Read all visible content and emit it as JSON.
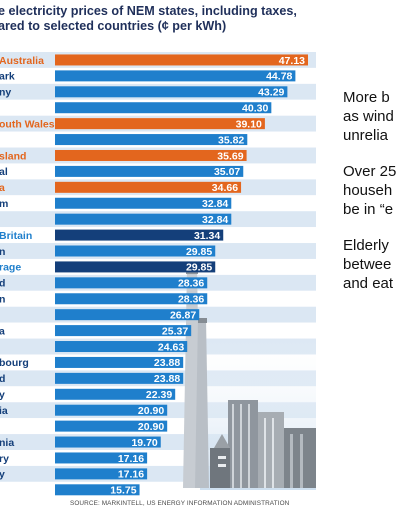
{
  "colors": {
    "highlight": "#e3661e",
    "standard": "#1f7fcc",
    "dark": "#143f7a",
    "stripe_light": "#dbe7f3",
    "stripe_white": "#ffffff",
    "title": "#1f2f5a"
  },
  "chart_data": {
    "type": "bar",
    "orientation": "horizontal",
    "title": "e electricity prices of NEM states, including taxes,\nared to selected countries (¢ per kWh)",
    "categories": [
      "Australia",
      "ark",
      "ny",
      "",
      "outh Wales",
      "",
      "sland",
      "al",
      "a",
      "m",
      "",
      "Britain",
      "n",
      "rage",
      "d",
      "n",
      "",
      "a",
      "",
      "bourg",
      "d",
      "y",
      "ia",
      "",
      "nia",
      "ry",
      "y",
      ""
    ],
    "values": [
      47.13,
      44.78,
      43.29,
      40.3,
      39.1,
      35.82,
      35.69,
      35.07,
      34.66,
      32.84,
      32.84,
      31.34,
      29.85,
      29.85,
      28.36,
      28.36,
      26.87,
      25.37,
      24.63,
      23.88,
      23.88,
      22.39,
      20.9,
      20.9,
      19.7,
      17.16,
      17.16,
      15.75
    ],
    "value_labels": [
      "47.13",
      "44.78",
      "43.29",
      "40.30",
      "39.10",
      "35.82",
      "35.69",
      "35.07",
      "34.66",
      "32.84",
      "32.84",
      "31.34",
      "29.85",
      "29.85",
      "28.36",
      "28.36",
      "26.87",
      "25.37",
      "24.63",
      "23.88",
      "23.88",
      "22.39",
      "20.90",
      "20.90",
      "19.70",
      "17.16",
      "17.16",
      "15.75"
    ],
    "bar_kinds": [
      "highlight",
      "standard",
      "standard",
      "standard",
      "highlight",
      "standard",
      "highlight",
      "standard",
      "highlight",
      "standard",
      "standard",
      "dark",
      "standard",
      "dark",
      "standard",
      "standard",
      "standard",
      "standard",
      "standard",
      "standard",
      "standard",
      "standard",
      "standard",
      "standard",
      "standard",
      "standard",
      "standard",
      "standard"
    ],
    "label_kinds": [
      "highlight",
      "dark",
      "dark",
      "dark",
      "highlight",
      "dark",
      "highlight",
      "dark",
      "highlight",
      "dark",
      "dark",
      "standard",
      "dark",
      "standard",
      "dark",
      "dark",
      "dark",
      "dark",
      "dark",
      "dark",
      "dark",
      "dark",
      "dark",
      "dark",
      "dark",
      "dark",
      "dark",
      "dark"
    ],
    "xlim": [
      0,
      50
    ],
    "grid": false,
    "legend": "none",
    "source": "SOURCE: MARKINTELL, US ENERGY INFORMATION ADMINISTRATION"
  },
  "side_text": {
    "paragraphs": [
      {
        "lines": [
          "More b",
          "as wind",
          "unrelia"
        ]
      },
      {
        "lines": [
          "Over 25",
          "househ",
          "be in “e"
        ]
      },
      {
        "lines": [
          "Elderly",
          "betwee",
          "and eat"
        ]
      }
    ]
  }
}
